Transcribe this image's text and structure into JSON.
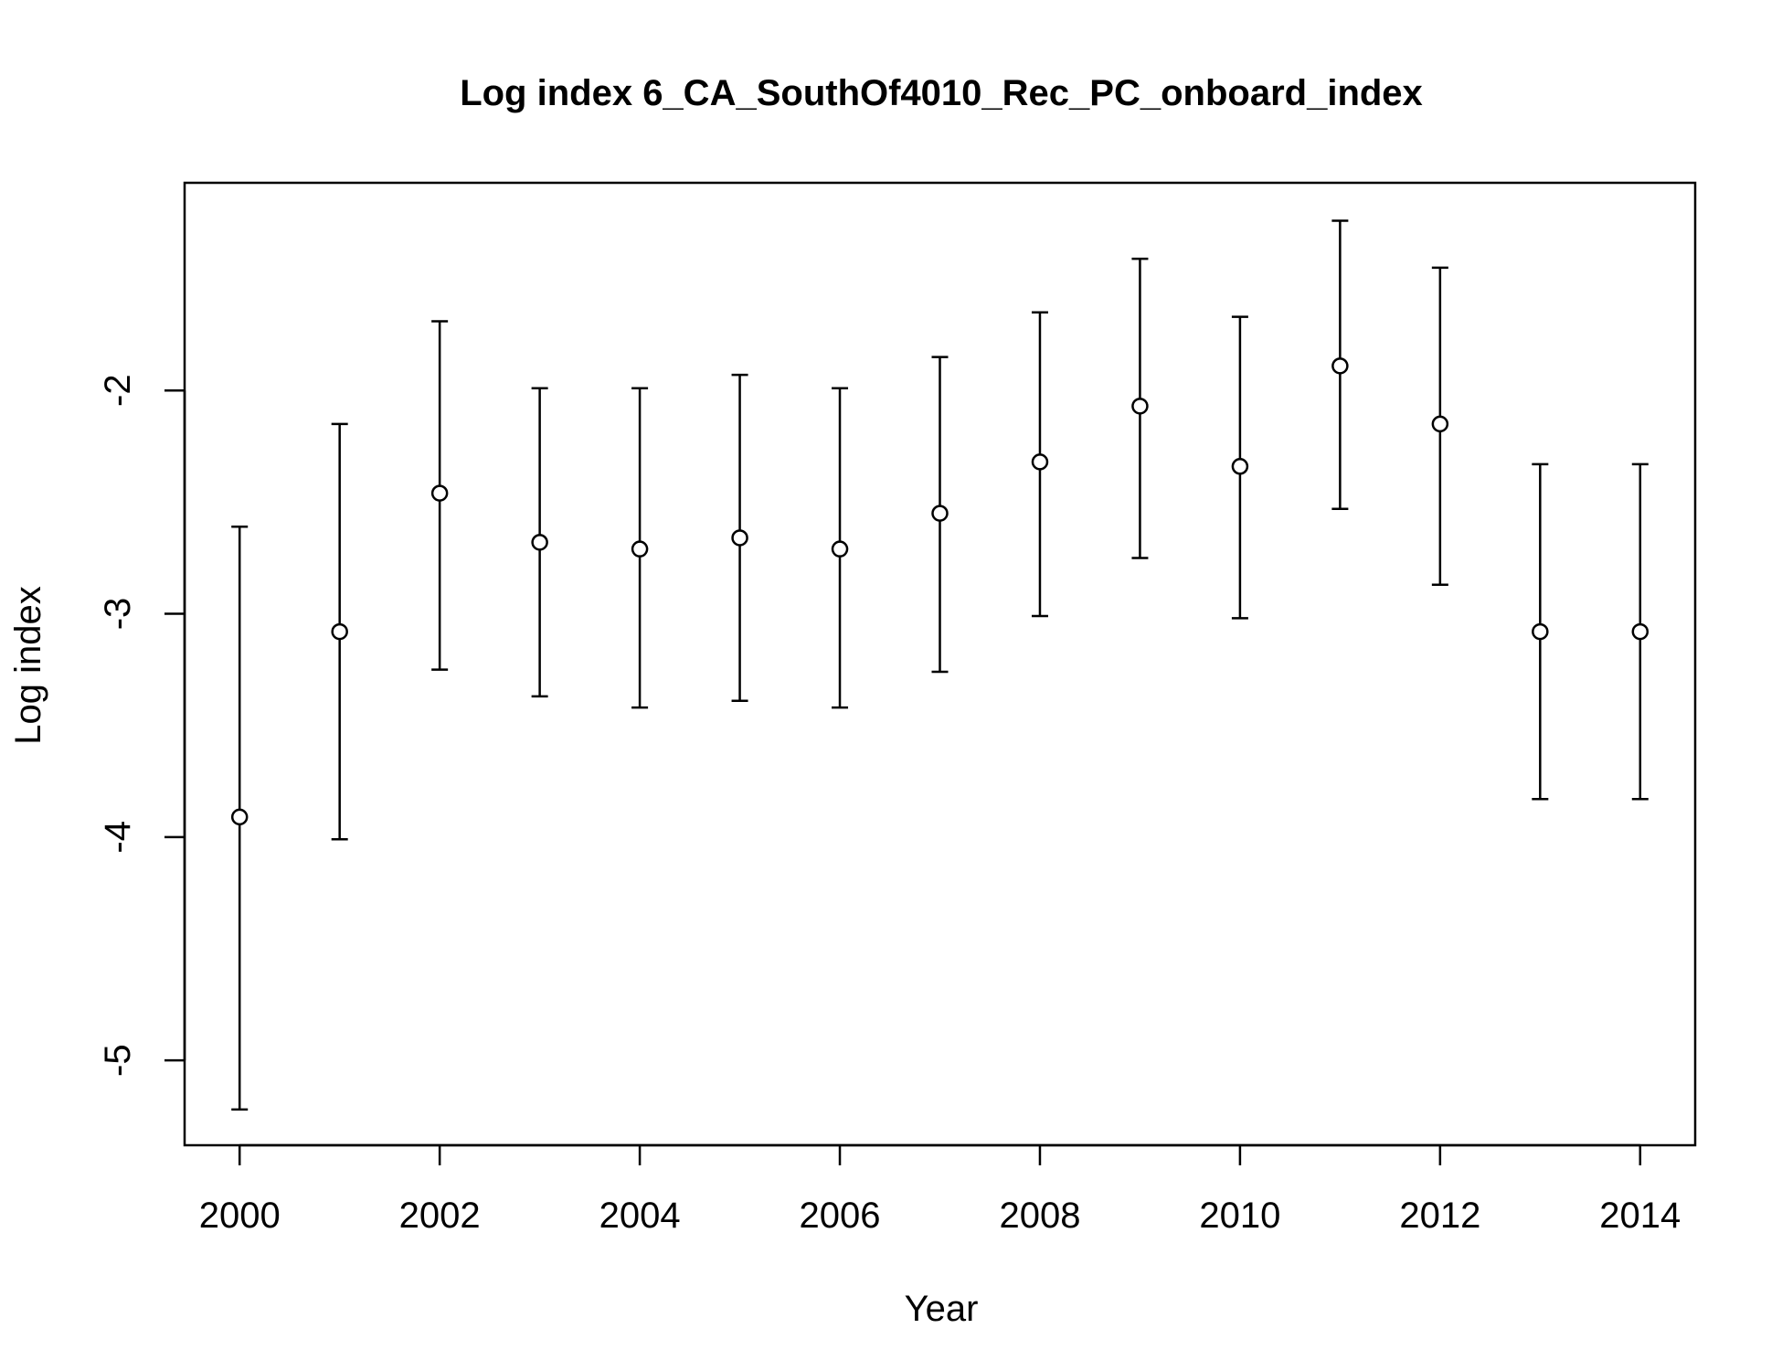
{
  "chart_data": {
    "type": "scatter",
    "title": "Log index 6_CA_SouthOf4010_Rec_PC_onboard_index",
    "xlabel": "Year",
    "ylabel": "Log index",
    "xlim": [
      1999.45,
      2014.55
    ],
    "ylim": [
      -5.38,
      -1.07
    ],
    "x_ticks": [
      2000,
      2002,
      2004,
      2006,
      2008,
      2010,
      2012,
      2014
    ],
    "x_tick_labels": [
      "2000",
      "2002",
      "2004",
      "2006",
      "2008",
      "2010",
      "2012",
      "2014"
    ],
    "y_ticks": [
      -5,
      -4,
      -3,
      -2
    ],
    "y_tick_labels": [
      "-5",
      "-4",
      "-3",
      "-2"
    ],
    "grid": false,
    "legend": "none",
    "marker": "open-circle",
    "series": [
      {
        "x": [
          2000,
          2001,
          2002,
          2003,
          2004,
          2005,
          2006,
          2007,
          2008,
          2009,
          2010,
          2011,
          2012,
          2013,
          2014
        ],
        "y": [
          -3.91,
          -3.08,
          -2.46,
          -2.68,
          -2.71,
          -2.66,
          -2.71,
          -2.55,
          -2.32,
          -2.07,
          -2.34,
          -1.89,
          -2.15,
          -3.08,
          -3.08
        ],
        "lower": [
          -5.22,
          -4.01,
          -3.25,
          -3.37,
          -3.42,
          -3.39,
          -3.42,
          -3.26,
          -3.01,
          -2.75,
          -3.02,
          -2.53,
          -2.87,
          -3.83,
          -3.83
        ],
        "upper": [
          -2.61,
          -2.15,
          -1.69,
          -1.99,
          -1.99,
          -1.93,
          -1.99,
          -1.85,
          -1.65,
          -1.41,
          -1.67,
          -1.24,
          -1.45,
          -2.33,
          -2.33
        ]
      }
    ]
  }
}
